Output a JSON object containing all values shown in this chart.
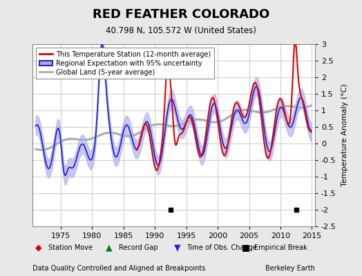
{
  "title": "RED FEATHER COLORADO",
  "subtitle": "40.798 N, 105.572 W (United States)",
  "ylabel": "Temperature Anomaly (°C)",
  "xlabel_note": "Data Quality Controlled and Aligned at Breakpoints",
  "credit": "Berkeley Earth",
  "ylim": [
    -2.5,
    3.0
  ],
  "xlim": [
    1970.5,
    2015.5
  ],
  "yticks": [
    -2.5,
    -2,
    -1.5,
    -1,
    -0.5,
    0,
    0.5,
    1,
    1.5,
    2,
    2.5,
    3
  ],
  "xticks": [
    1975,
    1980,
    1985,
    1990,
    1995,
    2000,
    2005,
    2010,
    2015
  ],
  "bg_color": "#e8e8e8",
  "plot_bg_color": "#ffffff",
  "grid_color": "#cccccc",
  "red_line_color": "#dd0000",
  "blue_line_color": "#2222cc",
  "blue_fill_color": "#aaaaee",
  "gray_line_color": "#aaaaaa",
  "empirical_break_years": [
    1992.5,
    2012.5
  ],
  "empirical_break_y": -2.0
}
